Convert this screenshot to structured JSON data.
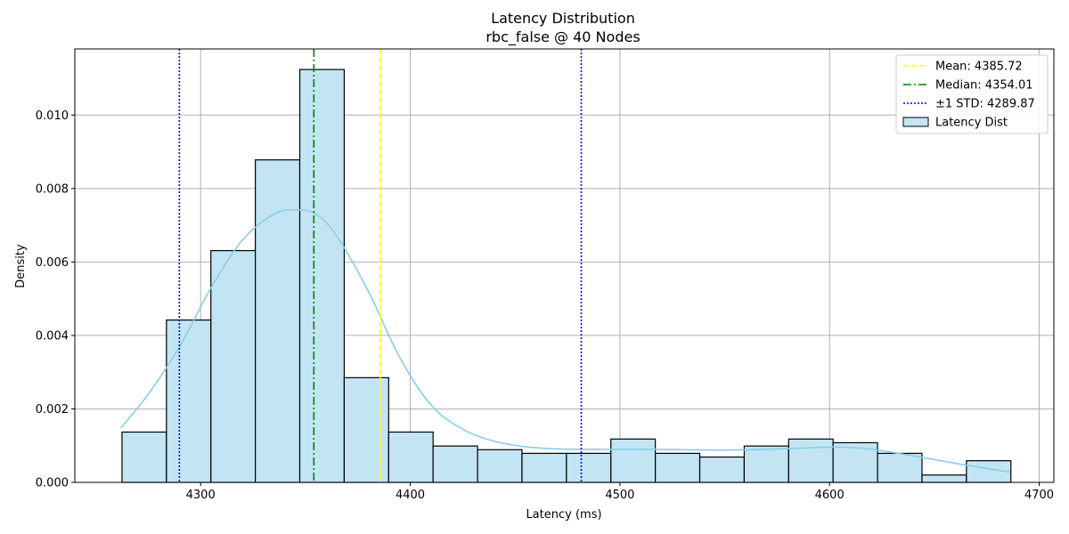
{
  "chart_data": {
    "type": "bar",
    "title": "Latency Distribution",
    "subtitle": "rbc_false @ 40 Nodes",
    "xlabel": "Latency (ms)",
    "ylabel": "Density",
    "xlim": [
      4240,
      4707
    ],
    "ylim": [
      0,
      0.0118
    ],
    "xticks": [
      4300,
      4400,
      4500,
      4600,
      4700
    ],
    "yticks": [
      0.0,
      0.002,
      0.004,
      0.006,
      0.008,
      0.01
    ],
    "ytick_labels": [
      "0.000",
      "0.002",
      "0.004",
      "0.006",
      "0.008",
      "0.010"
    ],
    "grid": true,
    "legend_position": "top-right",
    "colors": {
      "bar_fill": "#c3e5f3",
      "bar_edge": "#000000",
      "kde": "#87ceeb",
      "mean": "#ffff00",
      "median": "#008000",
      "std": "#0000ff",
      "grid": "#b0b0b0"
    },
    "histogram": {
      "name": "Latency Dist",
      "bin_edges": [
        4262.5,
        4283.7,
        4304.9,
        4326.1,
        4347.3,
        4368.5,
        4389.7,
        4410.9,
        4432.1,
        4453.3,
        4474.5,
        4495.7,
        4516.9,
        4538.1,
        4559.3,
        4580.5,
        4601.7,
        4622.9,
        4644.1,
        4665.3,
        4686.5
      ],
      "densities": [
        0.00137,
        0.00442,
        0.00631,
        0.00878,
        0.01124,
        0.00285,
        0.00137,
        0.00099,
        0.00089,
        0.00079,
        0.00079,
        0.00118,
        0.00079,
        0.00069,
        0.00099,
        0.00118,
        0.00108,
        0.00079,
        0.0002,
        0.00059
      ]
    },
    "kde": {
      "x": [
        4262,
        4275,
        4290,
        4305,
        4320,
        4335,
        4345,
        4355,
        4365,
        4380,
        4395,
        4410,
        4425,
        4440,
        4455,
        4470,
        4490,
        4510,
        4530,
        4550,
        4570,
        4590,
        4605,
        4620,
        4640,
        4660,
        4686
      ],
      "y": [
        0.00148,
        0.0024,
        0.0037,
        0.0053,
        0.0066,
        0.0073,
        0.00742,
        0.0073,
        0.0067,
        0.0052,
        0.0034,
        0.0021,
        0.00145,
        0.00112,
        0.00097,
        0.00091,
        0.0009,
        0.0009,
        0.00089,
        0.00088,
        0.0009,
        0.00094,
        0.00096,
        0.0009,
        0.00072,
        0.00052,
        0.00028
      ]
    },
    "lines": [
      {
        "name": "Mean: 4385.72",
        "x": 4385.72,
        "style": "dashed",
        "color": "#ffff00"
      },
      {
        "name": "Median: 4354.01",
        "x": 4354.01,
        "style": "dashdot",
        "color": "#008000"
      },
      {
        "name": "±1 STD: 4289.87",
        "x": 4289.87,
        "style": "dotted",
        "color": "#0000ff"
      },
      {
        "name": "",
        "x": 4481.57,
        "style": "dotted",
        "color": "#0000ff"
      }
    ],
    "legend": [
      {
        "label": "Mean: 4385.72",
        "kind": "line",
        "style": "dashed",
        "color": "#ffff00"
      },
      {
        "label": "Median: 4354.01",
        "kind": "line",
        "style": "dashdot",
        "color": "#008000"
      },
      {
        "label": "±1 STD: 4289.87",
        "kind": "line",
        "style": "dotted",
        "color": "#0000ff"
      },
      {
        "label": "Latency Dist",
        "kind": "patch",
        "color": "#c3e5f3"
      }
    ]
  }
}
